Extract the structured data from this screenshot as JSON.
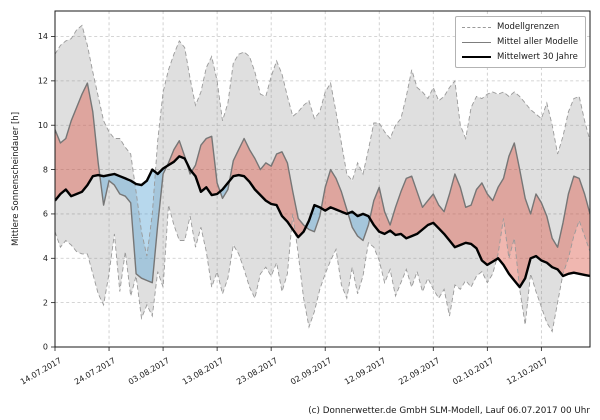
{
  "caption": "(c) Donnerwetter.de GmbH SLM-Modell, Lauf 06.07.2017 00 Uhr",
  "y_axis": {
    "label": "Mittlere Sonnenscheindauer [h]",
    "ticks": [
      0,
      2,
      4,
      6,
      8,
      10,
      12,
      14
    ],
    "range": [
      0,
      15.15
    ]
  },
  "x_axis": {
    "tick_positions": [
      0,
      10,
      20,
      30,
      40,
      50,
      60,
      70,
      80,
      90
    ],
    "tick_labels": [
      "14.07.2017",
      "24.07.2017",
      "03.08.2017",
      "13.08.2017",
      "23.08.2017",
      "02.09.2017",
      "12.09.2017",
      "22.09.2017",
      "02.10.2017",
      "12.10.2017"
    ],
    "range": [
      0,
      99
    ]
  },
  "legend": {
    "items": [
      {
        "label": "Modellgrenzen",
        "style": "dashed-gray"
      },
      {
        "label": "Mittel aller Modelle",
        "style": "solid-gray"
      },
      {
        "label": "Mittelwert 30 Jahre",
        "style": "thick-black"
      }
    ]
  },
  "colors": {
    "envelope_fill": "rgba(128,128,128,0.25)",
    "above_fill": "rgba(222,95,80,0.45)",
    "below_fill": "rgba(96,168,214,0.45)",
    "bound_line": "#9a9a9a",
    "model_mean_line": "#767676",
    "mean30_line": "#000000",
    "grid": "#c7c7c7",
    "frame": "#1a1a1a",
    "text": "#1a1a1a"
  },
  "chart_data": {
    "type": "line-with-bands",
    "title": "",
    "xlabel": "",
    "ylabel": "Mittlere Sonnenscheindauer [h]",
    "x_unit": "Tag-Index ab 14.07.2017 (1 Punkt pro Tag)",
    "ylim": [
      0,
      15.15
    ],
    "grid": true,
    "legend_position": "upper right",
    "series": [
      {
        "name": "Modellgrenze oben (Modellgrenzen)",
        "role": "upper_bound",
        "line": "dashed-gray",
        "values": [
          13.2,
          13.6,
          13.8,
          13.9,
          14.3,
          14.5,
          13.6,
          12.4,
          11.3,
          10.2,
          9.7,
          9.4,
          9.4,
          9.0,
          8.7,
          7.0,
          5.2,
          4.1,
          6.0,
          9.3,
          11.5,
          12.5,
          13.2,
          13.8,
          13.5,
          12.1,
          10.9,
          11.5,
          12.6,
          13.1,
          12.0,
          10.2,
          11.0,
          12.8,
          13.2,
          13.3,
          13.1,
          12.4,
          11.4,
          11.3,
          12.2,
          12.9,
          12.3,
          11.3,
          10.4,
          10.6,
          10.9,
          11.1,
          10.3,
          10.6,
          11.5,
          11.9,
          10.6,
          9.2,
          7.8,
          7.5,
          8.3,
          7.8,
          8.9,
          10.1,
          10.1,
          9.7,
          9.4,
          10.0,
          10.3,
          11.3,
          12.5,
          11.7,
          11.5,
          11.2,
          11.7,
          11.1,
          11.3,
          11.7,
          12.0,
          10.0,
          9.4,
          10.8,
          11.3,
          11.2,
          11.4,
          11.5,
          11.4,
          11.5,
          11.3,
          11.5,
          11.3,
          11.0,
          10.7,
          10.5,
          10.3,
          11.0,
          10.0,
          8.7,
          9.5,
          10.6,
          11.2,
          11.3,
          10.2,
          9.3
        ]
      },
      {
        "name": "Modellgrenze unten (Modellgrenzen)",
        "role": "lower_bound",
        "line": "dashed-gray",
        "values": [
          5.2,
          4.5,
          4.8,
          4.6,
          4.3,
          4.2,
          4.2,
          3.3,
          2.4,
          1.9,
          3.3,
          5.1,
          2.5,
          4.3,
          2.3,
          3.2,
          1.3,
          1.9,
          1.4,
          3.4,
          2.7,
          6.4,
          5.5,
          4.8,
          4.8,
          5.9,
          4.5,
          5.4,
          4.3,
          2.7,
          3.4,
          2.4,
          3.1,
          4.6,
          4.2,
          3.5,
          2.7,
          2.2,
          3.3,
          3.6,
          3.2,
          3.8,
          2.5,
          3.3,
          6.0,
          4.2,
          2.2,
          0.9,
          1.6,
          2.6,
          3.3,
          3.9,
          4.4,
          2.8,
          2.2,
          3.6,
          2.4,
          3.2,
          4.7,
          4.5,
          3.9,
          2.9,
          3.5,
          2.3,
          2.9,
          3.5,
          2.7,
          3.4,
          2.5,
          3.1,
          2.6,
          2.2,
          2.6,
          1.4,
          2.8,
          2.6,
          3.0,
          2.7,
          3.2,
          3.4,
          2.9,
          3.3,
          4.2,
          5.8,
          4.0,
          4.9,
          2.6,
          1.0,
          3.3,
          2.5,
          1.8,
          1.1,
          0.7,
          2.0,
          3.3,
          4.0,
          5.0,
          5.7,
          5.0,
          4.3
        ]
      },
      {
        "name": "Mittel aller Modelle",
        "role": "model_mean",
        "line": "solid-gray",
        "values": [
          9.8,
          9.2,
          9.4,
          10.2,
          10.8,
          11.4,
          11.9,
          10.6,
          8.3,
          6.4,
          7.5,
          7.3,
          6.9,
          6.8,
          6.5,
          3.3,
          3.1,
          3.0,
          2.9,
          5.5,
          7.8,
          8.3,
          8.9,
          9.3,
          8.6,
          7.8,
          8.2,
          9.1,
          9.4,
          9.5,
          7.4,
          6.7,
          7.1,
          8.4,
          8.9,
          9.4,
          8.9,
          8.5,
          8.0,
          8.3,
          8.15,
          8.7,
          8.8,
          8.3,
          7.0,
          5.8,
          5.5,
          5.3,
          5.2,
          5.9,
          7.2,
          8.0,
          7.6,
          7.0,
          6.2,
          5.4,
          5.0,
          4.8,
          5.5,
          6.6,
          7.2,
          6.1,
          5.5,
          6.3,
          7.0,
          7.6,
          7.7,
          7.0,
          6.3,
          6.6,
          6.9,
          6.4,
          6.1,
          6.9,
          7.8,
          7.2,
          6.3,
          6.4,
          7.1,
          7.4,
          6.9,
          6.6,
          7.2,
          7.6,
          8.6,
          9.2,
          8.0,
          6.7,
          6.0,
          6.9,
          6.5,
          5.9,
          4.9,
          4.5,
          5.6,
          6.9,
          7.7,
          7.6,
          6.9,
          6.0
        ]
      },
      {
        "name": "Mittelwert 30 Jahre",
        "role": "mean_30y",
        "line": "thick-black",
        "values": [
          6.6,
          6.9,
          7.1,
          6.8,
          6.9,
          7.0,
          7.3,
          7.7,
          7.75,
          7.7,
          7.75,
          7.8,
          7.7,
          7.6,
          7.5,
          7.35,
          7.3,
          7.5,
          8.0,
          7.8,
          8.05,
          8.2,
          8.35,
          8.6,
          8.5,
          8.0,
          7.7,
          7.0,
          7.2,
          6.85,
          6.9,
          7.1,
          7.4,
          7.7,
          7.75,
          7.7,
          7.45,
          7.1,
          6.85,
          6.6,
          6.45,
          6.4,
          5.9,
          5.65,
          5.3,
          4.95,
          5.2,
          5.7,
          6.4,
          6.3,
          6.15,
          6.3,
          6.2,
          6.1,
          6.0,
          6.1,
          5.9,
          6.0,
          5.9,
          5.5,
          5.2,
          5.1,
          5.25,
          5.05,
          5.1,
          4.9,
          5.0,
          5.1,
          5.3,
          5.5,
          5.6,
          5.35,
          5.1,
          4.8,
          4.5,
          4.6,
          4.7,
          4.65,
          4.45,
          3.9,
          3.7,
          3.85,
          4.0,
          3.7,
          3.3,
          3.0,
          2.7,
          3.1,
          4.0,
          4.1,
          3.9,
          3.8,
          3.6,
          3.5,
          3.2,
          3.3,
          3.35,
          3.3,
          3.25,
          3.2
        ]
      }
    ],
    "fills": [
      {
        "name": "Modellgrenzen-Band",
        "between": [
          "upper_bound",
          "lower_bound"
        ],
        "color_key": "envelope_fill"
      },
      {
        "name": "Modellmittel ueber 30-Jahre-Mittel",
        "between": [
          "model_mean",
          "mean_30y"
        ],
        "condition": "model_mean > mean_30y",
        "color_key": "above_fill"
      },
      {
        "name": "Modellmittel unter 30-Jahre-Mittel",
        "between": [
          "model_mean",
          "mean_30y"
        ],
        "condition": "model_mean < mean_30y",
        "color_key": "below_fill"
      }
    ]
  }
}
